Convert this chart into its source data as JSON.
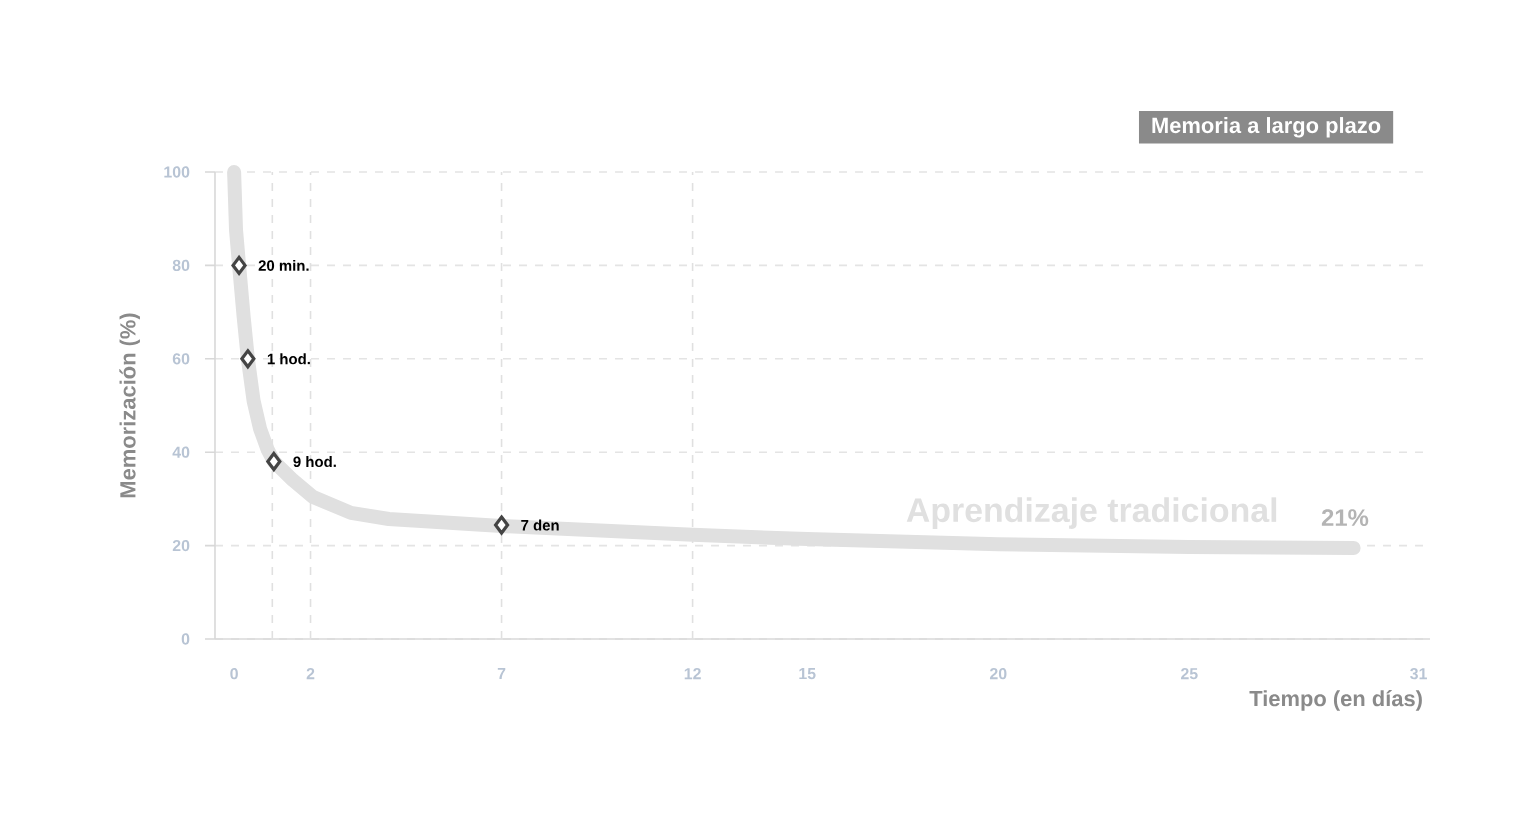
{
  "chart_data": {
    "type": "line",
    "xlabel": "Tiempo (en días)",
    "ylabel": "Memorización (%)",
    "xlim": [
      -0.5,
      31.3
    ],
    "ylim": [
      0,
      100
    ],
    "xticks": [
      0,
      2,
      7,
      12,
      15,
      20,
      25,
      31
    ],
    "yticks": [
      0,
      20,
      40,
      60,
      80,
      100
    ],
    "grid": "y",
    "line_style": "solid",
    "series": [
      {
        "name": "Aprendizaje tradicional",
        "marker": "none",
        "color": "#e0e0e0",
        "x": [
          0,
          0.05,
          0.13,
          0.25,
          0.36,
          0.51,
          0.68,
          0.88,
          1.04,
          1.54,
          2.07,
          3.06,
          4.05,
          7,
          12,
          15,
          20,
          25,
          29.3
        ],
        "values": [
          100,
          87.6,
          80,
          69,
          60,
          51,
          45,
          40.5,
          38,
          34,
          30.4,
          27,
          25.7,
          24.2,
          22.3,
          21.4,
          20.3,
          19.7,
          19.5
        ]
      },
      {
        "type": "scatter",
        "marker": "diamond",
        "color": "#444444",
        "x": [
          0.13,
          0.36,
          1.04,
          7
        ],
        "values": [
          80,
          60,
          38,
          24.4
        ]
      }
    ],
    "ref_lines": [
      {
        "axis": "x",
        "value": 1,
        "color": "#e0e0e0",
        "line_style": "dashed"
      },
      {
        "axis": "x",
        "value": 2,
        "color": "#e0e0e0",
        "line_style": "dashed"
      },
      {
        "axis": "x",
        "value": 7,
        "color": "#e0e0e0",
        "line_style": "dashed"
      },
      {
        "axis": "x",
        "value": 12,
        "color": "#e0e0e0",
        "line_style": "dashed"
      }
    ],
    "annotations": [
      "Memoria a largo plazo",
      "21%",
      {
        "text": "20 min.",
        "x": 0.13,
        "y": 80
      },
      {
        "text": "1 hod.",
        "x": 0.36,
        "y": 60
      },
      {
        "text": "9 hod.",
        "x": 1.04,
        "y": 38
      },
      {
        "text": "7 den",
        "x": 7,
        "y": 24.4
      }
    ]
  }
}
